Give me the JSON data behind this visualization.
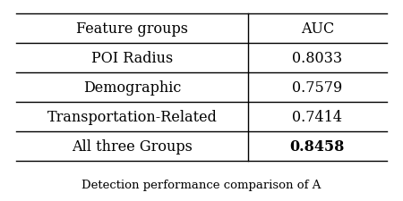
{
  "headers": [
    "Feature groups",
    "AUC"
  ],
  "rows": [
    [
      "POI Radius",
      "0.8033"
    ],
    [
      "Demographic",
      "0.7579"
    ],
    [
      "Transportation-Related",
      "0.7414"
    ],
    [
      "All three Groups",
      "0.8458"
    ]
  ],
  "bold_last_auc": true,
  "col_split": 0.615,
  "background_color": "#ffffff",
  "line_color": "#000000",
  "text_color": "#000000",
  "header_fontsize": 11.5,
  "cell_fontsize": 11.5,
  "caption": "Detection performance comparison of A"
}
